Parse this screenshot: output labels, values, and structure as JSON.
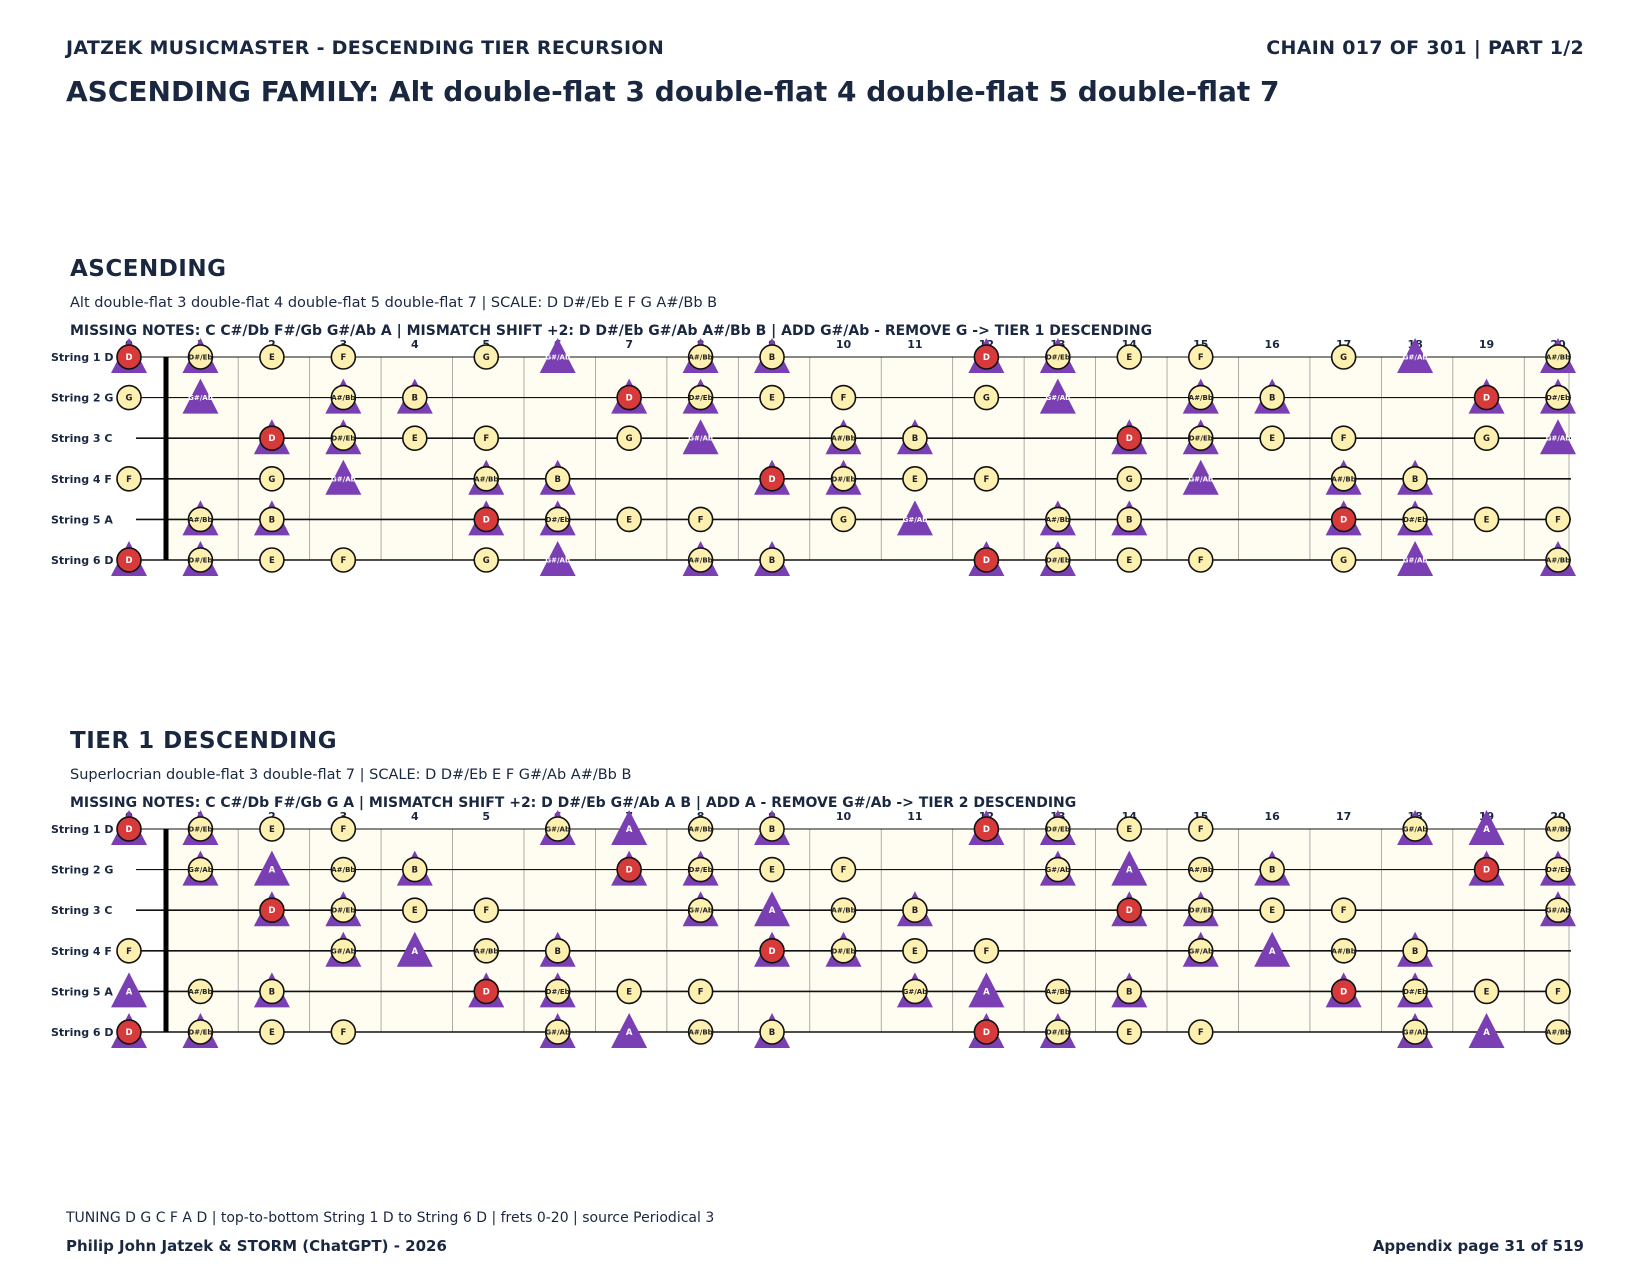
{
  "header": {
    "left": "JATZEK MUSICMASTER - DESCENDING TIER RECURSION",
    "right": "CHAIN 017 OF 301  |  PART 1/2"
  },
  "title": "ASCENDING FAMILY: Alt double-flat 3 double-flat 4 double-flat 5 double-flat 7",
  "fret_numbers": [
    "0",
    "1",
    "2",
    "3",
    "4",
    "5",
    "6",
    "7",
    "8",
    "9",
    "10",
    "11",
    "12",
    "13",
    "14",
    "15",
    "16",
    "17",
    "18",
    "19",
    "20"
  ],
  "string_labels": [
    "String 1 D",
    "String 2 G",
    "String 3 C",
    "String 4 F",
    "String 5 A",
    "String 6 D"
  ],
  "string_roots": [
    "D",
    "G",
    "C",
    "F",
    "A",
    "D"
  ],
  "chromatic": [
    "C",
    "C#/Db",
    "D",
    "D#/Eb",
    "E",
    "F",
    "F#/Gb",
    "G",
    "G#/Ab",
    "A",
    "A#/Bb",
    "B"
  ],
  "colors": {
    "root": "#d73a3a",
    "scale": "#fdf0b0",
    "triangle": "#7a3fb3",
    "board_bg": "#fffdf2",
    "text": "#1a2740"
  },
  "sections": [
    {
      "title": "ASCENDING",
      "subtitle": "Alt double-flat 3 double-flat 4 double-flat 5 double-flat 7  |  SCALE: D D#/Eb E F G A#/Bb B",
      "missing": "MISSING NOTES: C C#/Db F#/Gb G#/Ab A  |  MISMATCH SHIFT +2: D D#/Eb G#/Ab A#/Bb B  |  ADD G#/Ab - REMOVE G -> TIER 1 DESCENDING",
      "root": "D",
      "scale": [
        "D",
        "D#/Eb",
        "E",
        "F",
        "G",
        "A#/Bb",
        "B"
      ],
      "triangles": [
        "D",
        "D#/Eb",
        "G#/Ab",
        "A#/Bb",
        "B"
      ]
    },
    {
      "title": "TIER 1 DESCENDING",
      "subtitle": "Superlocrian double-flat 3 double-flat 7  |  SCALE: D D#/Eb E F G#/Ab A#/Bb B",
      "missing": "MISSING NOTES: C C#/Db F#/Gb G A  |  MISMATCH SHIFT +2: D D#/Eb G#/Ab A B  |  ADD A - REMOVE G#/Ab -> TIER 2 DESCENDING",
      "root": "D",
      "scale": [
        "D",
        "D#/Eb",
        "E",
        "F",
        "G#/Ab",
        "A#/Bb",
        "B"
      ],
      "triangles": [
        "D",
        "D#/Eb",
        "G#/Ab",
        "A",
        "B"
      ]
    }
  ],
  "footer": {
    "tuning": "TUNING D G C F A D | top-to-bottom String 1 D to String 6 D | frets 0-20 | source Periodical 3",
    "credit": "Philip John Jatzek & STORM (ChatGPT) - 2026",
    "page": "Appendix page 31 of 519"
  }
}
